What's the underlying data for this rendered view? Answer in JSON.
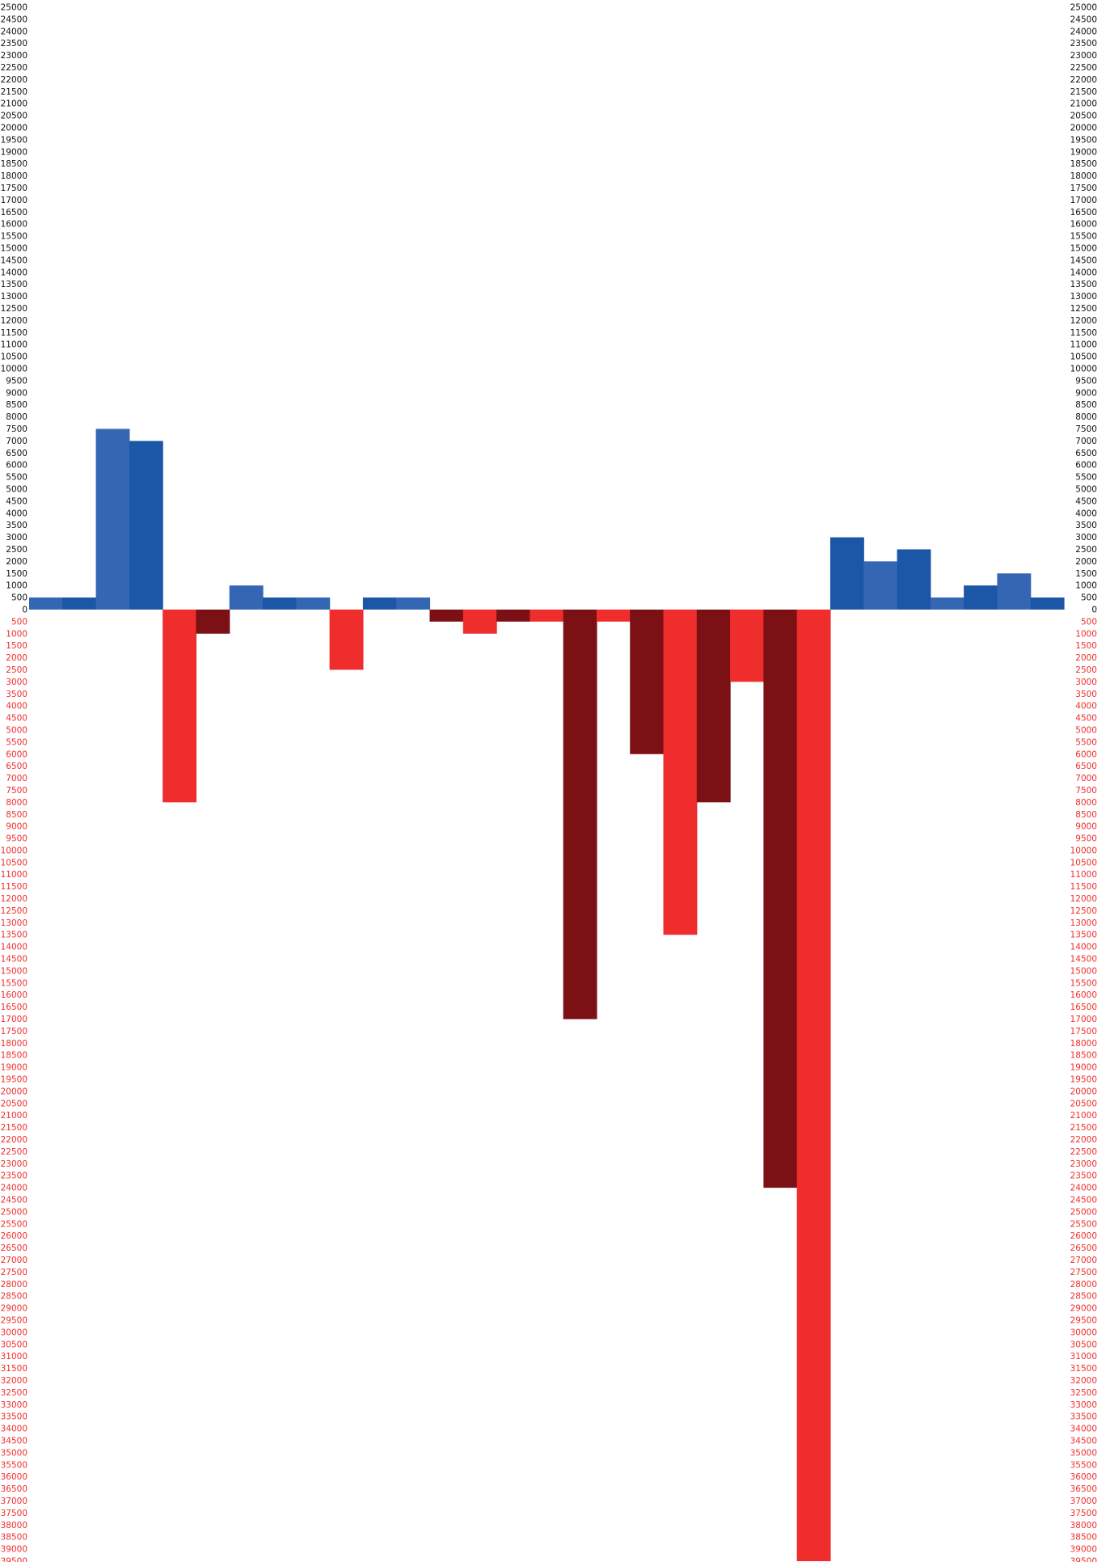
{
  "chart_data": {
    "type": "bar",
    "title": "",
    "xlabel": "",
    "ylabel": "",
    "ylim": [
      -39500,
      25000
    ],
    "tick_step": 500,
    "grid": false,
    "legend": "none",
    "colors": {
      "positive_a": "#3566b4",
      "positive_b": "#1c56a6",
      "negative_a": "#ef2d2d",
      "negative_b": "#7b1015",
      "positive_ticks": "#111111",
      "negative_ticks": "#ef2d2d"
    },
    "values": [
      500,
      500,
      7500,
      7000,
      -8000,
      -1000,
      1000,
      500,
      500,
      -2500,
      500,
      500,
      -500,
      -1000,
      -500,
      -500,
      -17000,
      -500,
      -6000,
      -13500,
      -8000,
      -3000,
      -24000,
      -39500,
      3000,
      2000,
      2500,
      500,
      1000,
      1500,
      500
    ],
    "bar_colors": [
      "#3566b4",
      "#1c56a6",
      "#3566b4",
      "#1c56a6",
      "#ef2d2d",
      "#7b1015",
      "#3566b4",
      "#1c56a6",
      "#3566b4",
      "#ef2d2d",
      "#1c56a6",
      "#3566b4",
      "#7b1015",
      "#ef2d2d",
      "#7b1015",
      "#ef2d2d",
      "#7b1015",
      "#ef2d2d",
      "#7b1015",
      "#ef2d2d",
      "#7b1015",
      "#ef2d2d",
      "#7b1015",
      "#ef2d2d",
      "#1c56a6",
      "#3566b4",
      "#1c56a6",
      "#3566b4",
      "#1c56a6",
      "#3566b4",
      "#1c56a6"
    ]
  }
}
